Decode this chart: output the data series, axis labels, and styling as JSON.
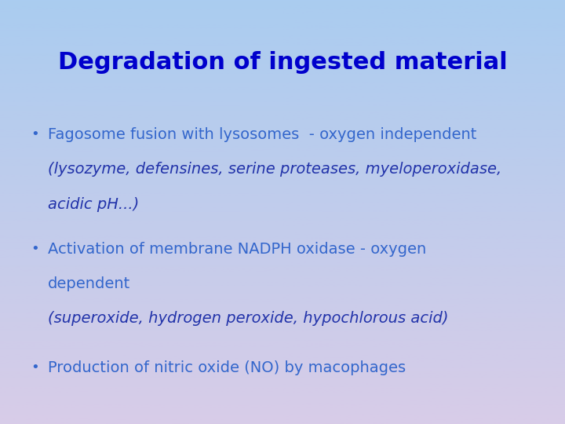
{
  "title": "Degradation of ingested material",
  "title_color": "#0000CC",
  "title_fontsize": 22,
  "bg_color_top": "#aaccf0",
  "bg_color_bottom": "#d8cce8",
  "bullet_items": [
    {
      "bullet_line": "Fagosome fusion with lysosomes  - oxygen independent",
      "sub_lines": [
        {
          "text": "(lysozyme, defensines, serine proteases, myeloperoxidase,",
          "italic": true,
          "color": "#2233aa"
        },
        {
          "text": "acidic pH...)",
          "italic": true,
          "color": "#2233aa"
        }
      ],
      "bullet_text_color": "#3366cc"
    },
    {
      "bullet_line": "Activation of membrane NADPH oxidase - oxygen",
      "sub_lines": [
        {
          "text": "dependent",
          "italic": false,
          "color": "#3366cc"
        },
        {
          "text": "(superoxide, hydrogen peroxide, hypochlorous acid)",
          "italic": true,
          "color": "#2233aa"
        }
      ],
      "bullet_text_color": "#3366cc"
    },
    {
      "bullet_line": "Production of nitric oxide (NO) by macophages",
      "sub_lines": [],
      "bullet_text_color": "#3366cc"
    }
  ],
  "bullet_fontsize": 14,
  "sub_fontsize": 14,
  "bullet_char": "•",
  "figsize": [
    7.2,
    5.4
  ],
  "dpi": 100
}
